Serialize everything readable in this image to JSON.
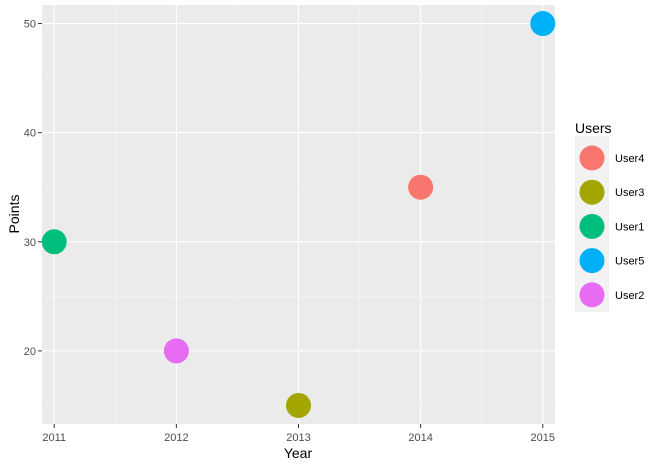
{
  "chart_data": {
    "type": "scatter",
    "title": "",
    "xlabel": "Year",
    "ylabel": "Points",
    "xlim": [
      2010.9,
      2015.1
    ],
    "ylim": [
      13.3,
      51.7
    ],
    "x_ticks": [
      2011,
      2012,
      2013,
      2014,
      2015
    ],
    "y_ticks": [
      20,
      30,
      40,
      50
    ],
    "grid": true,
    "legend": {
      "title": "Users",
      "position": "right"
    },
    "series": [
      {
        "name": "User4",
        "color": "#F8766D",
        "points": [
          {
            "x": 2014,
            "y": 35
          }
        ]
      },
      {
        "name": "User3",
        "color": "#A3A500",
        "points": [
          {
            "x": 2013,
            "y": 15
          }
        ]
      },
      {
        "name": "User1",
        "color": "#00BF7D",
        "points": [
          {
            "x": 2011,
            "y": 30
          }
        ]
      },
      {
        "name": "User5",
        "color": "#00B0F6",
        "points": [
          {
            "x": 2015,
            "y": 50
          }
        ]
      },
      {
        "name": "User2",
        "color": "#E76BF3",
        "points": [
          {
            "x": 2012,
            "y": 20
          }
        ]
      }
    ]
  }
}
